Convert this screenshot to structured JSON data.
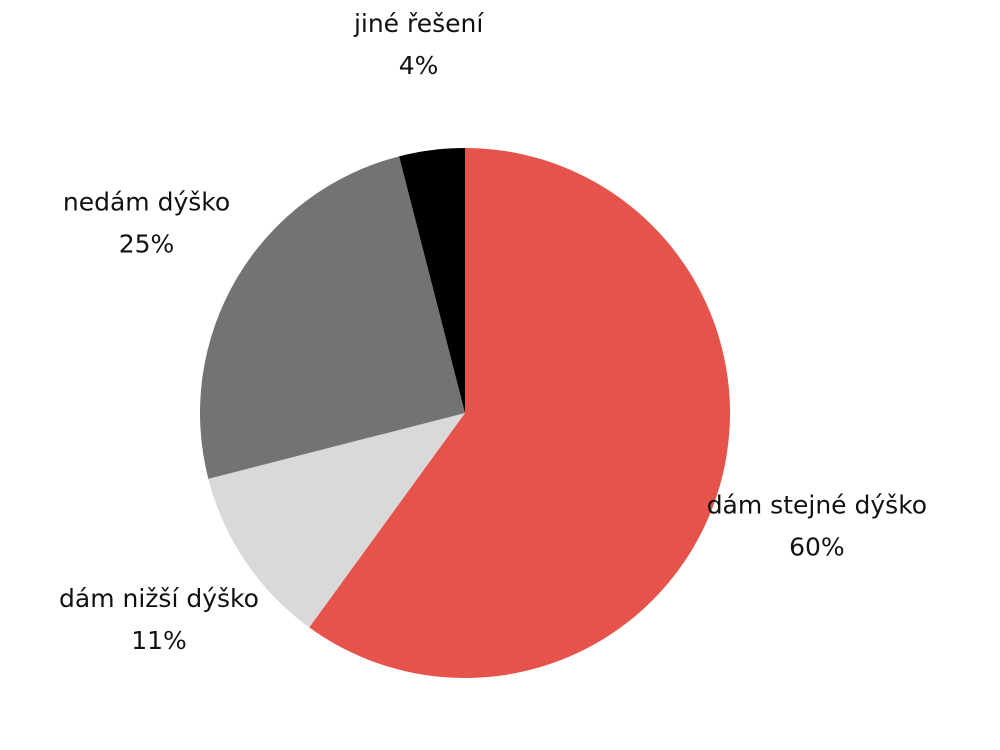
{
  "chart_data": {
    "type": "pie",
    "categories": [
      "dám stejné dýško",
      "dám nižší dýško",
      "nedám dýško",
      "jiné řešení"
    ],
    "values": [
      60,
      11,
      25,
      4
    ],
    "value_labels": [
      "60%",
      "11%",
      "25%",
      "4%"
    ],
    "colors": [
      "#e5534b",
      "#d9d9d9",
      "#737373",
      "#000000"
    ]
  }
}
